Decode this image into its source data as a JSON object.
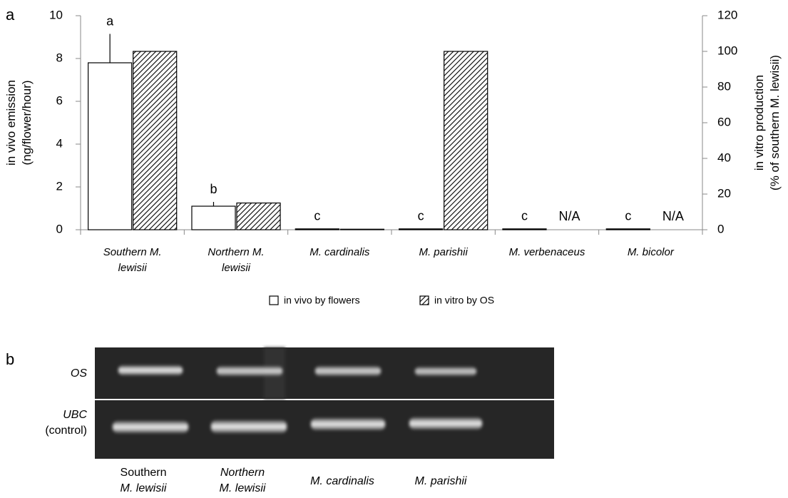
{
  "chart_data": {
    "type": "bar",
    "panel_label": "a",
    "categories": [
      "Southern M. lewisii",
      "Northern M. lewisii",
      "M. cardinalis",
      "M. parishii",
      "M. verbenaceus",
      "M. bicolor"
    ],
    "series": [
      {
        "name": "in vivo by flowers",
        "color": "#ffffff",
        "values": [
          7.8,
          1.1,
          0.04,
          0.04,
          0.04,
          0.04
        ],
        "errors": [
          1.35,
          0.2,
          null,
          null,
          null,
          null
        ],
        "significance_labels": [
          "a",
          "b",
          "c",
          "c",
          "c",
          "c"
        ]
      },
      {
        "name": "in vitro by OS",
        "color": "hatch",
        "axis": "y2",
        "values": [
          100,
          15,
          0.3,
          100,
          null,
          null
        ],
        "na_labels": [
          null,
          null,
          null,
          null,
          "N/A",
          "N/A"
        ]
      }
    ],
    "y_label": [
      "in vivo emission",
      "(ng/flower/hour)"
    ],
    "y2_label": [
      "in vitro production",
      "(% of southern M. lewisii)"
    ],
    "ylim": [
      0,
      10
    ],
    "yticks": [
      0,
      2,
      4,
      6,
      8,
      10
    ],
    "y2lim": [
      0,
      120
    ],
    "y2ticks": [
      0,
      20,
      40,
      60,
      80,
      100,
      120
    ],
    "grid": false,
    "legend": "bottom"
  },
  "gel": {
    "panel_label": "b",
    "rows": [
      "OS",
      "UBC"
    ],
    "row_sublabel": "(control)",
    "lanes": [
      [
        "Southern",
        "M. lewisii"
      ],
      [
        "Northern",
        "M. lewisii"
      ],
      [
        "M. cardinalis"
      ],
      [
        "M. parishii"
      ]
    ]
  }
}
